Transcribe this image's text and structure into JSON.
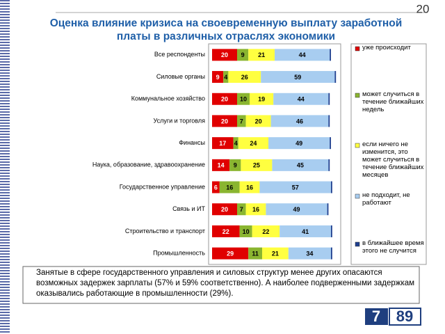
{
  "page_number": "20",
  "chart_data": {
    "type": "stacked-bar-horizontal",
    "title": "Оценка влияние кризиса на своевременную выплату заработной платы в различных отраслях экономики",
    "categories": [
      "Все респонденты",
      "Силовые органы",
      "Коммунальное хозяйство",
      "Услуги и торговля",
      "Финансы",
      "Наука, образование, здравоохранение",
      "Государственное управление",
      "Связь и ИТ",
      "Строительство и транспорт",
      "Промышленность"
    ],
    "series": [
      {
        "name": "уже происходит",
        "color": "#e00000",
        "values": [
          20,
          9,
          20,
          20,
          17,
          14,
          6,
          20,
          22,
          29
        ]
      },
      {
        "name": "может случиться в течение ближайших недель",
        "color": "#8ab530",
        "values": [
          9,
          4,
          10,
          7,
          4,
          9,
          16,
          7,
          10,
          11
        ]
      },
      {
        "name": "если ничего не изменится, это может случиться в течение ближайших месяцев",
        "color": "#ffff40",
        "values": [
          21,
          26,
          19,
          20,
          24,
          25,
          16,
          16,
          22,
          21
        ]
      },
      {
        "name": "не подходит, не работают",
        "color": "#a8cdf0",
        "values": [
          44,
          59,
          44,
          46,
          49,
          45,
          57,
          49,
          41,
          34
        ]
      },
      {
        "name": "в ближайшее время этого не случится",
        "color": "#1f3f8f",
        "values": [
          1,
          1,
          1,
          1,
          1,
          1,
          1,
          1,
          1,
          1
        ]
      }
    ],
    "xlim": [
      0,
      100
    ]
  },
  "note": "Занятые в сфере государственного управления и силовых структур  менее других опасаются возможных задержек зарплаты (57% и 59% соответственно). А наиболее подверженными задержкам оказывались работающие в промышленности (29%).",
  "logo": {
    "left": "7",
    "right": "89"
  }
}
